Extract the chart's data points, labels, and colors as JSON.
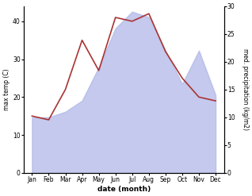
{
  "months": [
    "Jan",
    "Feb",
    "Mar",
    "Apr",
    "May",
    "Jun",
    "Jul",
    "Aug",
    "Sep",
    "Oct",
    "Nov",
    "Dec"
  ],
  "temperature": [
    15,
    14,
    22,
    35,
    27,
    41,
    40,
    42,
    32,
    25,
    20,
    19
  ],
  "precipitation": [
    10,
    10,
    11,
    13,
    19,
    26,
    29,
    28,
    22,
    16,
    22,
    14
  ],
  "temp_color": "#aa3333",
  "precip_color": "#b0b8e8",
  "ylabel_left": "max temp (C)",
  "ylabel_right": "med. precipitation (kg/m2)",
  "xlabel": "date (month)",
  "ylim_left": [
    0,
    44
  ],
  "ylim_right": [
    0,
    30
  ],
  "yticks_left": [
    0,
    10,
    20,
    30,
    40
  ],
  "yticks_right": [
    0,
    5,
    10,
    15,
    20,
    25,
    30
  ],
  "bg_color": "#ffffff",
  "fig_bg": "#ffffff"
}
